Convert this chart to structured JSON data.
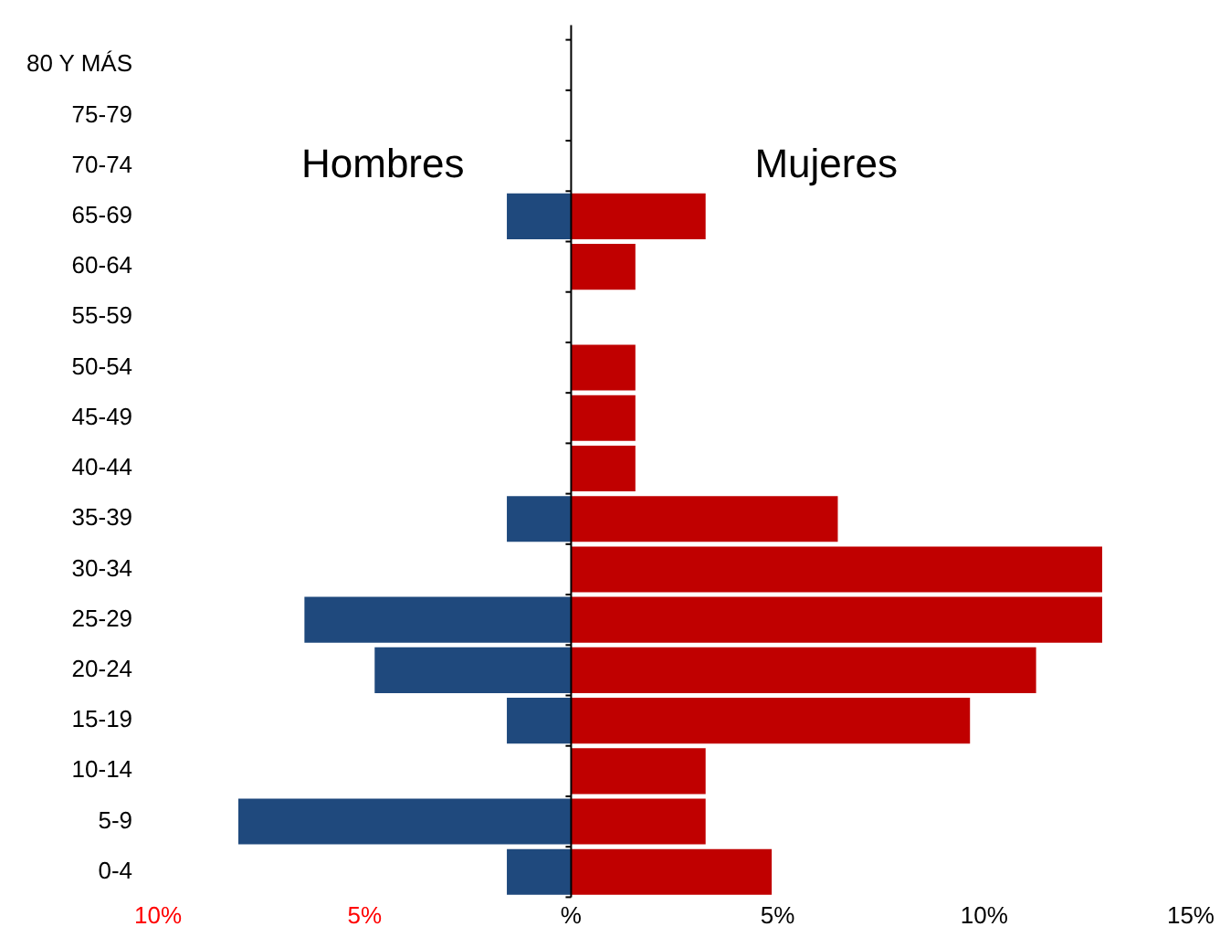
{
  "chart_data": {
    "type": "bar",
    "orientation": "horizontal",
    "stacked": true,
    "categories": [
      "80 Y MÁS",
      "75-79",
      "70-74",
      "65-69",
      "60-64",
      "55-59",
      "50-54",
      "45-49",
      "40-44",
      "35-39",
      "30-34",
      "25-29",
      "20-24",
      "15-19",
      "10-14",
      "5-9",
      "0-4"
    ],
    "series": [
      {
        "name": "Hombres",
        "color": "#1f497d",
        "values": [
          null,
          null,
          null,
          -1.6,
          null,
          null,
          null,
          null,
          null,
          -1.6,
          null,
          -6.5,
          -4.8,
          -1.6,
          null,
          -8.1,
          -1.6
        ]
      },
      {
        "name": "Mujeres",
        "color": "#c00000",
        "values": [
          null,
          null,
          null,
          3.3,
          1.6,
          null,
          1.6,
          1.6,
          1.6,
          6.5,
          12.9,
          12.9,
          11.3,
          9.7,
          3.3,
          3.3,
          4.9
        ]
      }
    ],
    "xlim": [
      -10,
      15
    ],
    "xticks": [
      {
        "value": -10,
        "label": "10%"
      },
      {
        "value": -5,
        "label": "5%"
      },
      {
        "value": 0,
        "label": "%"
      },
      {
        "value": 5,
        "label": "5%"
      },
      {
        "value": 10,
        "label": "10%"
      },
      {
        "value": 15,
        "label": "15%"
      }
    ],
    "legend": false
  }
}
